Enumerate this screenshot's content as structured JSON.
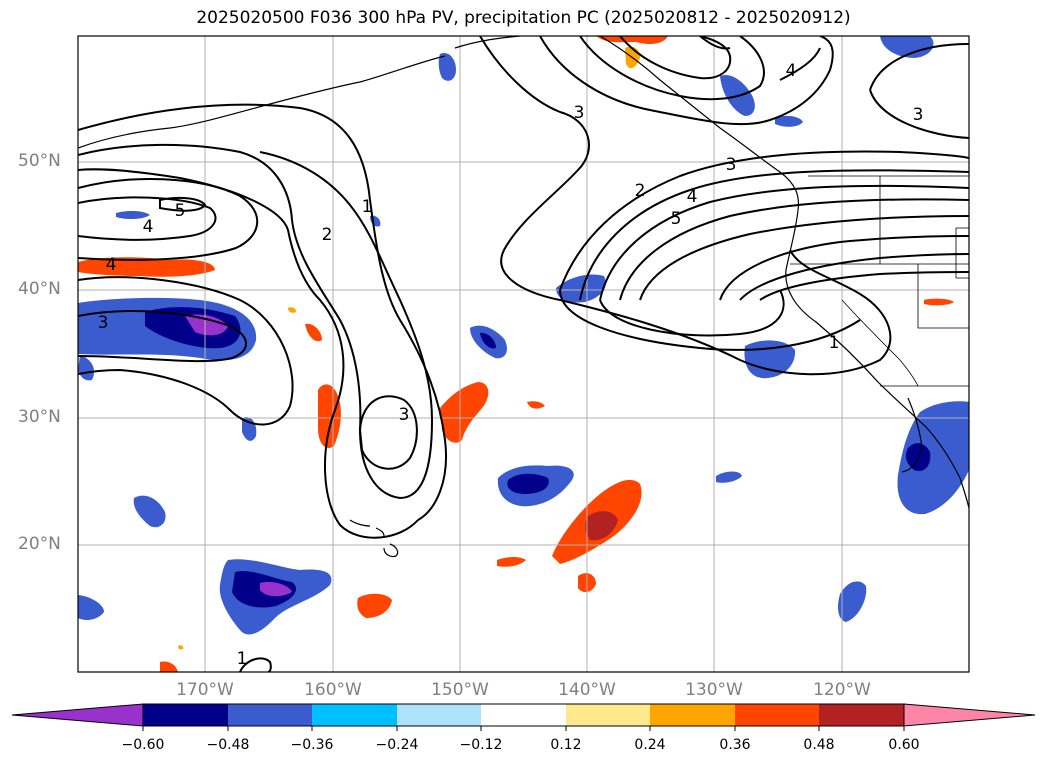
{
  "title": "2025020500 F036 300 hPa PV, precipitation PC (2025020812 - 2025020912)",
  "lat_labels": [
    "50°N",
    "40°N",
    "30°N",
    "20°N"
  ],
  "lon_labels": [
    "170°W",
    "160°W",
    "150°W",
    "140°W",
    "130°W",
    "120°W"
  ],
  "contour_labels": [
    "5",
    "4",
    "4",
    "3",
    "2",
    "1",
    "3",
    "3",
    "2",
    "4",
    "5",
    "3",
    "3",
    "4",
    "1",
    "1"
  ],
  "colorbar": {
    "ticks": [
      "−0.60",
      "−0.48",
      "−0.36",
      "−0.24",
      "−0.12",
      "0.12",
      "0.24",
      "0.36",
      "0.48",
      "0.60"
    ],
    "colors": [
      "#9932CC",
      "#00008B",
      "#3A5CCF",
      "#00BFFF",
      "#ADE2FA",
      "#FFFFFF",
      "#FFE98C",
      "#FFA500",
      "#FF4500",
      "#B22222",
      "#FF85A8"
    ]
  }
}
